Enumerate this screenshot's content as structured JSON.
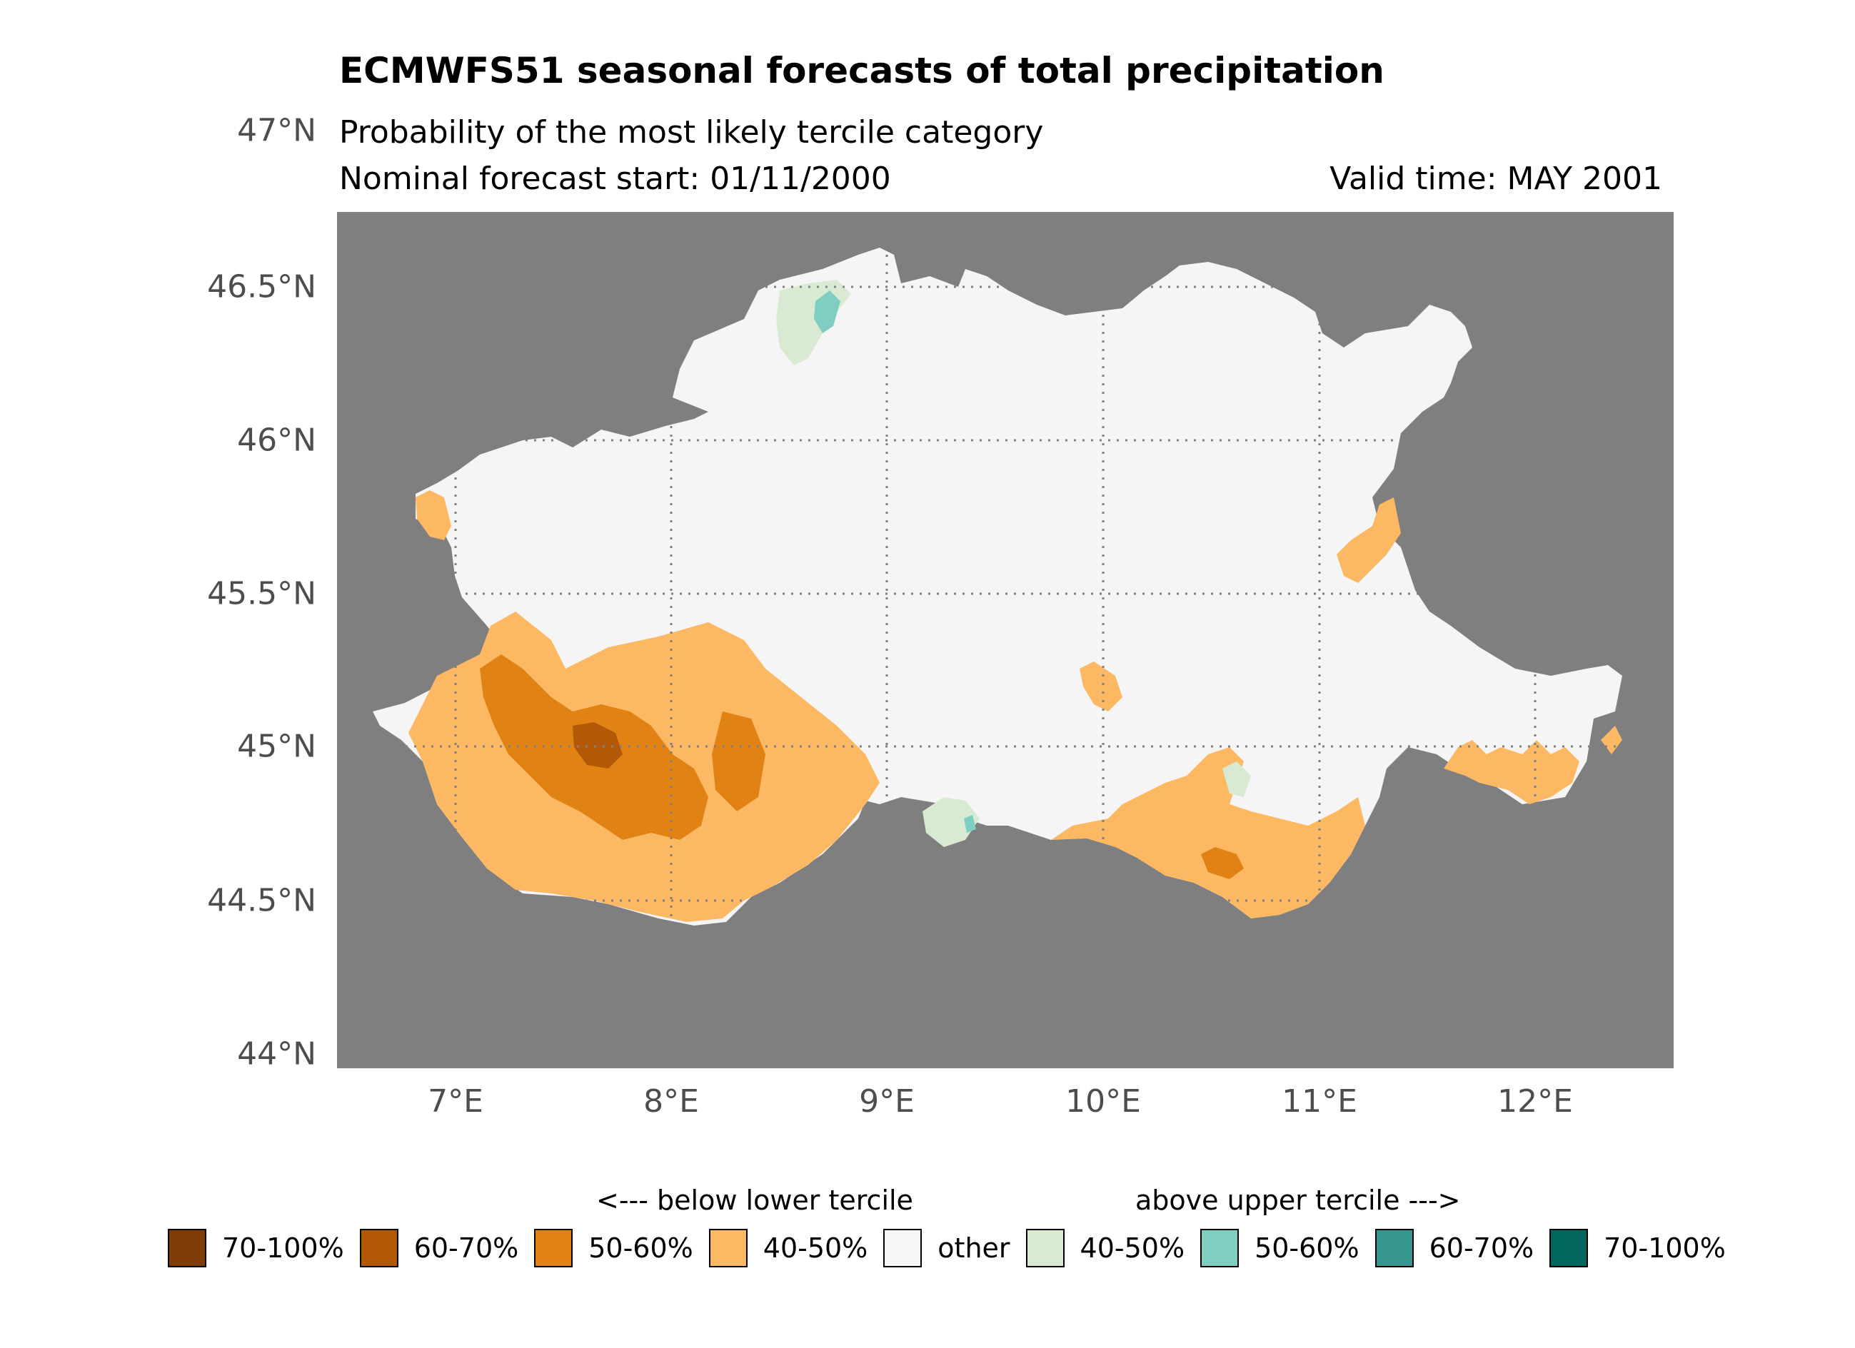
{
  "title": "ECMWFS51 seasonal forecasts of total precipitation",
  "subtitle": "Probability of the most likely tercile category",
  "forecast_start": "Nominal forecast start: 01/11/2000",
  "valid_time": "Valid time: MAY 2001",
  "axes": {
    "lat_labels": [
      "47°N",
      "46.5°N",
      "46°N",
      "45.5°N",
      "45°N",
      "44.5°N",
      "44°N"
    ],
    "lon_labels": [
      "7°E",
      "8°E",
      "9°E",
      "10°E",
      "11°E",
      "12°E"
    ]
  },
  "legend": {
    "below_header": "<--- below lower tercile",
    "above_header": "above upper tercile --->",
    "items": [
      {
        "label": "70-100%",
        "color": "#7f3b08"
      },
      {
        "label": "60-70%",
        "color": "#b35806"
      },
      {
        "label": "50-60%",
        "color": "#e08214"
      },
      {
        "label": "40-50%",
        "color": "#fdb863"
      },
      {
        "label": "other",
        "color": "#f7f7f7"
      },
      {
        "label": "40-50%",
        "color": "#d9ead3"
      },
      {
        "label": "50-60%",
        "color": "#80cdc1"
      },
      {
        "label": "60-70%",
        "color": "#35978f"
      },
      {
        "label": "70-100%",
        "color": "#01665e"
      }
    ]
  },
  "colors": {
    "background": "#7f7f7f",
    "other": "#f5f5f5",
    "graticule": "#808080"
  }
}
